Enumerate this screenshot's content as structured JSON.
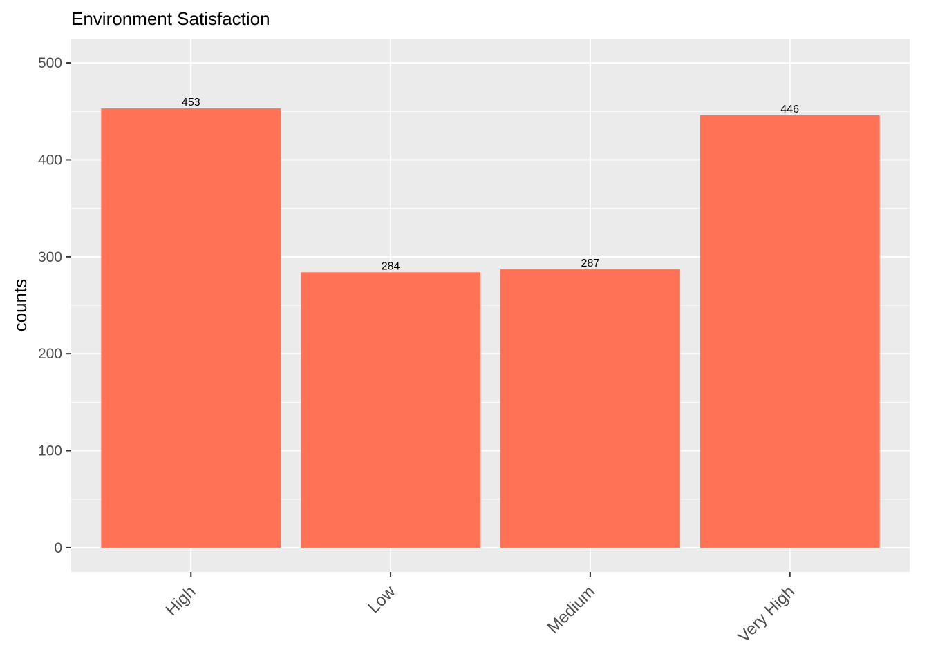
{
  "chart_data": {
    "type": "bar",
    "title": "Environment Satisfaction",
    "xlabel": "",
    "ylabel": "counts",
    "categories": [
      "High",
      "Low",
      "Medium",
      "Very High"
    ],
    "values": [
      453,
      284,
      287,
      446
    ],
    "data_labels": [
      "453",
      "284",
      "287",
      "446"
    ],
    "ylim": [
      -25,
      525
    ],
    "yticks": [
      0,
      100,
      200,
      300,
      400,
      500
    ],
    "ytick_labels": [
      "0",
      "100",
      "200",
      "300",
      "400",
      "500"
    ],
    "grid": true,
    "legend": "none",
    "colors": {
      "bar": "#FF7256",
      "panel": "#EBEBEB",
      "grid": "#FFFFFF"
    }
  }
}
